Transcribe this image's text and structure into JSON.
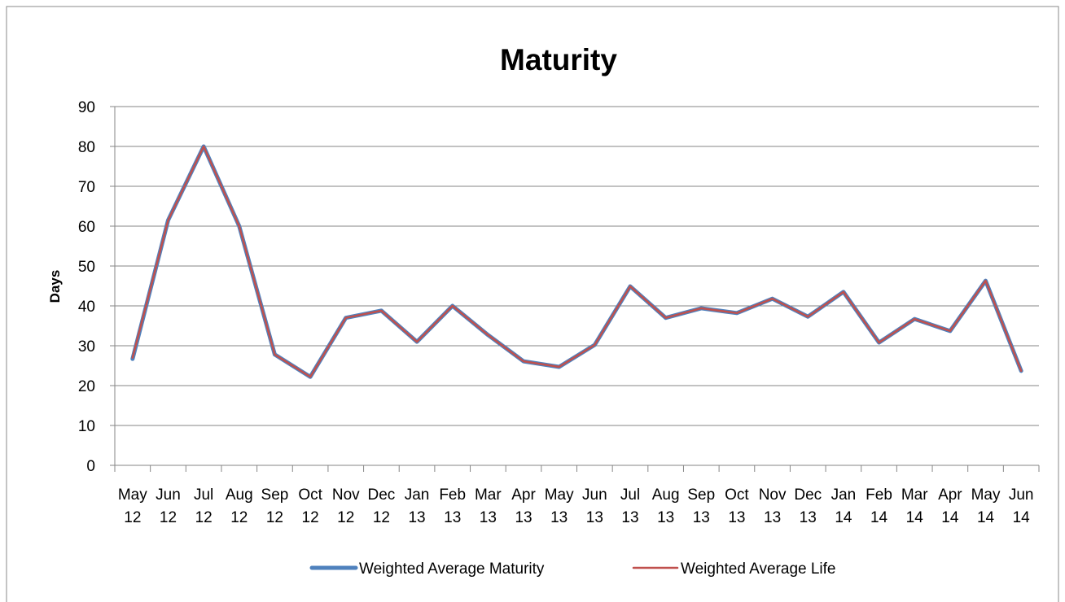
{
  "chart_data": {
    "type": "line",
    "title": "Maturity",
    "y_label": "Days",
    "categories": [
      "May 12",
      "Jun 12",
      "Jul 12",
      "Aug 12",
      "Sep 12",
      "Oct 12",
      "Nov 12",
      "Dec 12",
      "Jan 13",
      "Feb 13",
      "Mar 13",
      "Apr 13",
      "May 13",
      "Jun 13",
      "Jul 13",
      "Aug 13",
      "Sep 13",
      "Oct 13",
      "Nov 13",
      "Dec 13",
      "Jan 14",
      "Feb 14",
      "Mar 14",
      "Apr 14",
      "May 14",
      "Jun 14"
    ],
    "series": [
      {
        "name": "Weighted Average Maturity",
        "color": "#4f81bd",
        "values": [
          26.7,
          61.5,
          80,
          60,
          27.8,
          22.2,
          37,
          38.8,
          31,
          40,
          32.7,
          26.1,
          24.7,
          30.2,
          44.9,
          37,
          39.4,
          38.2,
          41.8,
          37.3,
          43.5,
          30.8,
          36.7,
          33.7,
          46.3,
          23.7
        ]
      },
      {
        "name": "Weighted Average Life",
        "color": "#c0504d",
        "values": [
          27,
          61.5,
          80,
          60,
          27.8,
          22.2,
          37,
          38.8,
          31,
          40,
          32.7,
          26.1,
          24.7,
          30.2,
          44.9,
          37,
          39.4,
          38.2,
          41.8,
          37.3,
          43.5,
          30.8,
          36.7,
          33.7,
          46.3,
          23.7
        ]
      }
    ],
    "ylim": [
      0,
      90
    ],
    "yticks": [
      0,
      10,
      20,
      30,
      40,
      50,
      60,
      70,
      80,
      90
    ],
    "grid": true,
    "legend": "bottom"
  }
}
